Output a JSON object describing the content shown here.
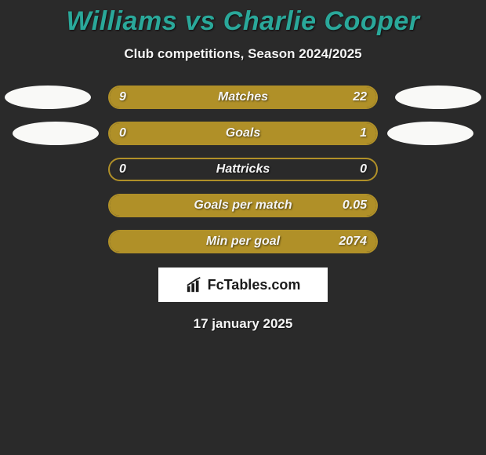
{
  "background_color": "#2a2a2a",
  "title": {
    "text": "Williams vs Charlie Cooper",
    "color": "#2aa89a",
    "fontsize": 34,
    "font_style": "italic",
    "font_weight": 900
  },
  "subtitle": {
    "text": "Club competitions, Season 2024/2025",
    "color": "#f5f5f5",
    "fontsize": 17
  },
  "bar_style": {
    "fill_color": "#b09028",
    "border_color": "#b09028",
    "border_radius": 15,
    "track_width": 344,
    "track_height": 30
  },
  "text_style": {
    "value_color": "#f5f5f5",
    "label_color": "#f5f5f5",
    "value_fontsize": 16,
    "font_style": "italic",
    "font_weight": 900
  },
  "ellipses": {
    "color": "#f9f9f7",
    "width": 110,
    "height": 30
  },
  "stats": [
    {
      "label": "Matches",
      "left_value": "9",
      "right_value": "22",
      "left_pct": 29.0,
      "right_pct": 71.0
    },
    {
      "label": "Goals",
      "left_value": "0",
      "right_value": "1",
      "left_pct": 0.0,
      "right_pct": 100.0
    },
    {
      "label": "Hattricks",
      "left_value": "0",
      "right_value": "0",
      "left_pct": 0.0,
      "right_pct": 0.0
    },
    {
      "label": "Goals per match",
      "left_value": "",
      "right_value": "0.05",
      "left_pct": 0.0,
      "right_pct": 100.0
    },
    {
      "label": "Min per goal",
      "left_value": "",
      "right_value": "2074",
      "left_pct": 0.0,
      "right_pct": 100.0
    }
  ],
  "logo": {
    "text": "FcTables.com",
    "box_bg": "#ffffff",
    "text_color": "#1a1a1a",
    "fontsize": 18
  },
  "date": {
    "text": "17 january 2025",
    "color": "#f5f5f5",
    "fontsize": 17
  }
}
